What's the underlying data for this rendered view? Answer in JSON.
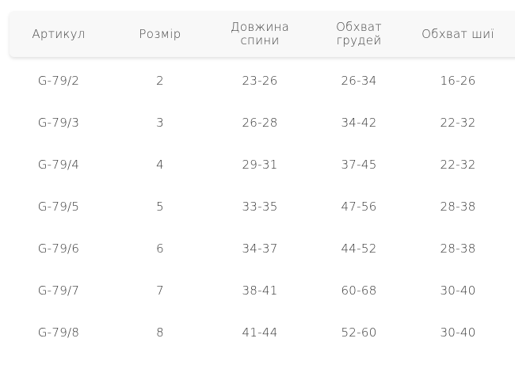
{
  "table": {
    "headers": [
      "Артикул",
      "Розмір",
      "Довжина\nспини",
      "Обхват\nгрудей",
      "Обхват шиї"
    ],
    "header_lines": [
      [
        "Артикул"
      ],
      [
        "Розмір"
      ],
      [
        "Довжина",
        "спини"
      ],
      [
        "Обхват",
        "грудей"
      ],
      [
        "Обхват шиї"
      ]
    ],
    "rows": [
      [
        "G-79/2",
        "2",
        "23-26",
        "26-34",
        "16-26"
      ],
      [
        "G-79/3",
        "3",
        "26-28",
        "34-42",
        "22-32"
      ],
      [
        "G-79/4",
        "4",
        "29-31",
        "37-45",
        "22-32"
      ],
      [
        "G-79/5",
        "5",
        "33-35",
        "47-56",
        "28-38"
      ],
      [
        "G-79/6",
        "6",
        "34-37",
        "44-52",
        "28-38"
      ],
      [
        "G-79/7",
        "7",
        "38-41",
        "60-68",
        "30-40"
      ],
      [
        "G-79/8",
        "8",
        "41-44",
        "52-60",
        "30-40"
      ]
    ]
  }
}
